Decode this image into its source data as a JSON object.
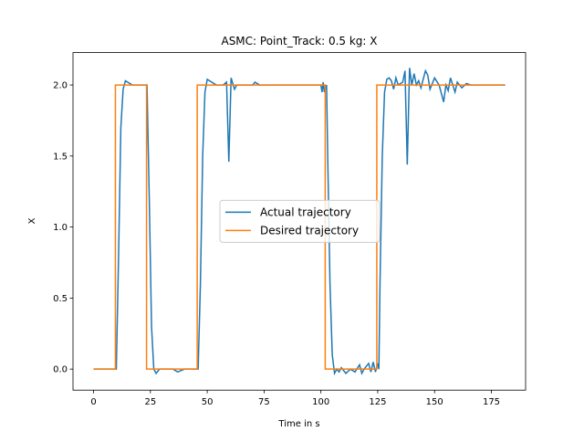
{
  "chart_data": {
    "type": "line",
    "title": "ASMC: Point_Track: 0.5 kg: X",
    "xlabel": "Time in s",
    "ylabel": "X",
    "xlim": [
      -9.05,
      190.05
    ],
    "ylim": [
      -0.148,
      2.228
    ],
    "xticks": [
      0,
      25,
      50,
      75,
      100,
      125,
      150,
      175
    ],
    "yticks": [
      {
        "value": 0,
        "label": "0.0"
      },
      {
        "value": 0.5,
        "label": "0.5"
      },
      {
        "value": 1,
        "label": "1.0"
      },
      {
        "value": 1.5,
        "label": "1.5"
      },
      {
        "value": 2,
        "label": "2.0"
      }
    ],
    "legend": "center",
    "series": [
      {
        "name": "Actual trajectory",
        "color": "#1f77b4",
        "x": [
          0,
          10,
          11,
          12,
          13,
          14,
          15,
          17,
          23.5,
          24.5,
          25.5,
          26.5,
          27.5,
          29,
          35,
          37,
          40,
          46,
          47,
          48,
          49,
          50,
          52,
          54,
          57,
          58.5,
          59.5,
          60.5,
          62,
          63,
          70,
          71,
          73,
          100,
          100.5,
          101,
          101.5,
          102.5,
          103,
          104,
          105,
          106,
          107,
          108,
          109,
          111,
          113,
          115,
          117,
          118,
          119,
          121,
          122,
          123,
          124,
          125,
          125.5,
          126,
          127,
          128,
          129,
          130,
          131,
          132,
          133,
          134,
          136,
          137,
          138,
          139,
          140,
          141,
          142,
          143,
          144,
          146,
          147,
          148,
          149,
          150,
          152,
          154,
          155,
          156,
          157,
          159,
          160,
          162,
          164,
          166,
          181
        ],
        "values": [
          0,
          0,
          0.8,
          1.7,
          1.97,
          2.03,
          2.02,
          2.0,
          2.0,
          1.2,
          0.3,
          0.0,
          -0.03,
          0.0,
          0.0,
          -0.02,
          0.0,
          0.0,
          0.6,
          1.5,
          1.95,
          2.04,
          2.02,
          2.0,
          2.0,
          2.02,
          1.46,
          2.05,
          1.97,
          2.0,
          2.0,
          2.02,
          2.0,
          2.0,
          1.95,
          2.02,
          1.95,
          2.0,
          1.5,
          0.6,
          0.1,
          -0.03,
          0.0,
          -0.02,
          0.01,
          -0.03,
          0.0,
          -0.02,
          0.03,
          -0.03,
          0.0,
          0.04,
          -0.02,
          0.05,
          -0.02,
          0.04,
          0.0,
          0.6,
          1.5,
          1.95,
          2.04,
          2.05,
          2.03,
          1.97,
          2.05,
          2.0,
          2.02,
          2.1,
          1.44,
          2.12,
          2.0,
          2.08,
          2.0,
          2.03,
          1.98,
          2.1,
          2.07,
          1.97,
          2.01,
          2.05,
          2.0,
          1.88,
          2.0,
          1.96,
          2.05,
          1.95,
          2.02,
          1.98,
          2.01,
          2.0,
          2.0
        ]
      },
      {
        "name": "Desired trajectory",
        "color": "#ff7f0e",
        "x": [
          0,
          9.6,
          9.6,
          23.3,
          23.3,
          45.6,
          45.6,
          101.9,
          101.9,
          124.6,
          124.6,
          180.5
        ],
        "values": [
          0,
          0,
          2,
          2,
          0,
          0,
          2,
          2,
          0,
          0,
          2,
          2
        ]
      }
    ]
  }
}
